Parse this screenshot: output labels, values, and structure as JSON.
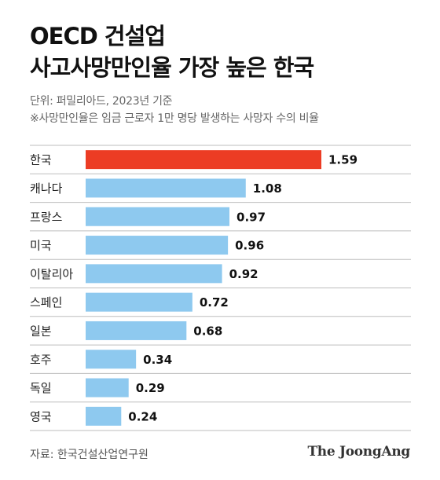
{
  "title_lines": [
    "OECD 건설업",
    "사고사망만인율 가장 높은 한국"
  ],
  "unit_note": "단위: 퍼밀리아드, 2023년 기준",
  "definition_note": "※사망만인율은 임금 근로자 1만 명당 발생하는 사망자 수의 비율",
  "source": "자료: 한국건설산업연구원",
  "publisher": "The JoongAng",
  "colors": {
    "highlight": "#ec3c24",
    "bar": "#8ec9ef",
    "divider": "#bdbdbd"
  },
  "chart_data": {
    "type": "bar",
    "orientation": "horizontal",
    "title": "OECD 건설업 사고사망만인율 가장 높은 한국",
    "unit": "퍼밀리아드",
    "categories": [
      "한국",
      "캐나다",
      "프랑스",
      "미국",
      "이탈리아",
      "스페인",
      "일본",
      "호주",
      "독일",
      "영국"
    ],
    "values": [
      1.59,
      1.08,
      0.97,
      0.96,
      0.92,
      0.72,
      0.68,
      0.34,
      0.29,
      0.24
    ],
    "value_labels": [
      "1.59",
      "1.08",
      "0.97",
      "0.96",
      "0.92",
      "0.72",
      "0.68",
      "0.34",
      "0.29",
      "0.24"
    ],
    "highlight_category": "한국",
    "xlim": [
      0,
      1.59
    ],
    "grid": false,
    "legend": "none"
  }
}
